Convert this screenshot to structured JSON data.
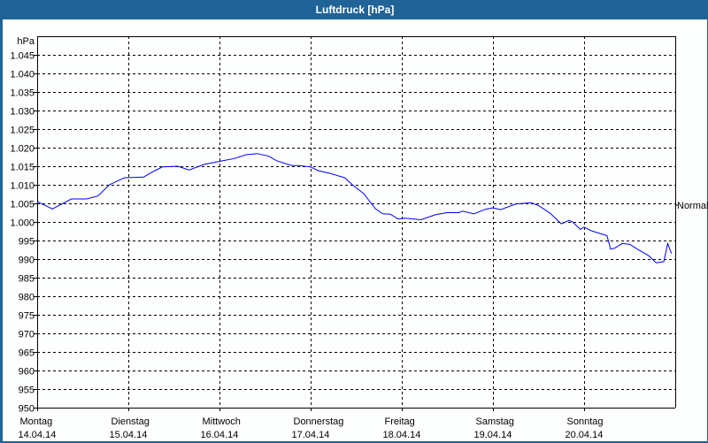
{
  "window": {
    "title": "Luftdruck [hPa]"
  },
  "chart_data": {
    "type": "line",
    "title": "Luftdruck [hPa]",
    "ylabel": "hPa",
    "ylim": [
      950,
      1050
    ],
    "yticks": [
      950,
      955,
      960,
      965,
      970,
      975,
      980,
      985,
      990,
      995,
      1000,
      1005,
      1010,
      1015,
      1020,
      1025,
      1030,
      1035,
      1040,
      1045
    ],
    "ytick_labels": [
      "950",
      "955",
      "960",
      "965",
      "970",
      "975",
      "980",
      "985",
      "990",
      "995",
      "1.000",
      "1.005",
      "1.010",
      "1.015",
      "1.020",
      "1.025",
      "1.030",
      "1.035",
      "1.040",
      "1.045"
    ],
    "xlim": [
      "14.04.14 00:00",
      "21.04.14 00:00"
    ],
    "xticks": [
      {
        "day": "Montag",
        "date": "14.04.14"
      },
      {
        "day": "Dienstag",
        "date": "15.04.14"
      },
      {
        "day": "Mittwoch",
        "date": "16.04.14"
      },
      {
        "day": "Donnerstag",
        "date": "17.04.14"
      },
      {
        "day": "Freitag",
        "date": "18.04.14"
      },
      {
        "day": "Samstag",
        "date": "19.04.14"
      },
      {
        "day": "Sonntag",
        "date": "20.04.14"
      }
    ],
    "reference": {
      "label": "Normal",
      "value": 1005
    },
    "grid": true,
    "line_color": "#0000ff",
    "series": [
      {
        "x": [
          "14.04.14 00:00",
          "14.04.14 04:00",
          "14.04.14 09:00",
          "14.04.14 13:00",
          "14.04.14 16:00",
          "14.04.14 19:00",
          "14.04.14 23:00",
          "15.04.14 04:00",
          "15.04.14 07:00",
          "15.04.14 09:00",
          "15.04.14 13:00",
          "15.04.14 16:00",
          "15.04.14 20:00",
          "16.04.14 00:00",
          "16.04.14 04:00",
          "16.04.14 07:00",
          "16.04.14 10:00",
          "16.04.14 13:00",
          "16.04.14 15:00",
          "16.04.14 19:00",
          "16.04.14 21:00",
          "17.04.14 00:00",
          "17.04.14 02:00",
          "17.04.14 05:00",
          "17.04.14 09:00",
          "17.04.14 11:00",
          "17.04.14 14:00",
          "17.04.14 17:00",
          "17.04.14 19:00",
          "17.04.14 21:00",
          "17.04.14 23:00",
          "18.04.14 01:00",
          "18.04.14 05:00",
          "18.04.14 09:00",
          "18.04.14 12:00",
          "18.04.14 15:00",
          "18.04.14 16:00",
          "18.04.14 19:00",
          "18.04.14 22:00",
          "19.04.14 00:00",
          "19.04.14 02:00",
          "19.04.14 06:00",
          "19.04.14 10:00",
          "19.04.14 12:00",
          "19.04.14 15:00",
          "19.04.14 18:00",
          "19.04.14 20:00",
          "19.04.14 21:00",
          "19.04.14 23:00",
          "20.04.14 00:00",
          "20.04.14 02:00",
          "20.04.14 06:00",
          "20.04.14 07:00",
          "20.04.14 08:00",
          "20.04.14 10:00",
          "20.04.14 12:00",
          "20.04.14 14:00",
          "20.04.14 17:00",
          "20.04.14 19:00",
          "20.04.14 21:00",
          "20.04.14 22:00",
          "20.04.14 23:00"
        ],
        "y": [
          1005.5,
          1003.5,
          1006.2,
          1006.2,
          1007,
          1010,
          1011.9,
          1012.1,
          1013.8,
          1014.8,
          1015,
          1014,
          1015.5,
          1016.3,
          1017.1,
          1018.1,
          1018.4,
          1017.7,
          1016.5,
          1015.2,
          1015.2,
          1014.8,
          1013.8,
          1013.1,
          1011.9,
          1010,
          1007.6,
          1003.6,
          1002.2,
          1002.1,
          1000.8,
          1001,
          1000.6,
          1002,
          1002.5,
          1002.5,
          1002.9,
          1002.2,
          1003.4,
          1003.8,
          1003.3,
          1004.8,
          1005.2,
          1004.4,
          1002.4,
          999.5,
          1000.4,
          1000,
          998,
          998.6,
          997.6,
          996.3,
          992.7,
          992.9,
          994.2,
          994,
          992.7,
          990.9,
          989,
          989.3,
          994.2,
          991.5
        ]
      }
    ]
  }
}
